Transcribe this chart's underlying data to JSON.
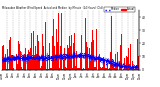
{
  "title_line1": "Milwaukee Weather Wind Speed",
  "title_line2": "Actual and Median",
  "title_line3": "by Minute",
  "title_line4": "(24 Hours) (Old)",
  "legend_actual": "Actual",
  "legend_median": "Median",
  "actual_color": "#ff0000",
  "median_color": "#0000ff",
  "background_color": "#ffffff",
  "grid_color": "#aaaaaa",
  "ylabel_right_values": [
    0,
    10,
    20,
    30,
    40
  ],
  "ylim": [
    0,
    45
  ],
  "n_minutes": 1440,
  "seed": 42,
  "figsize": [
    1.6,
    0.87
  ],
  "dpi": 100
}
